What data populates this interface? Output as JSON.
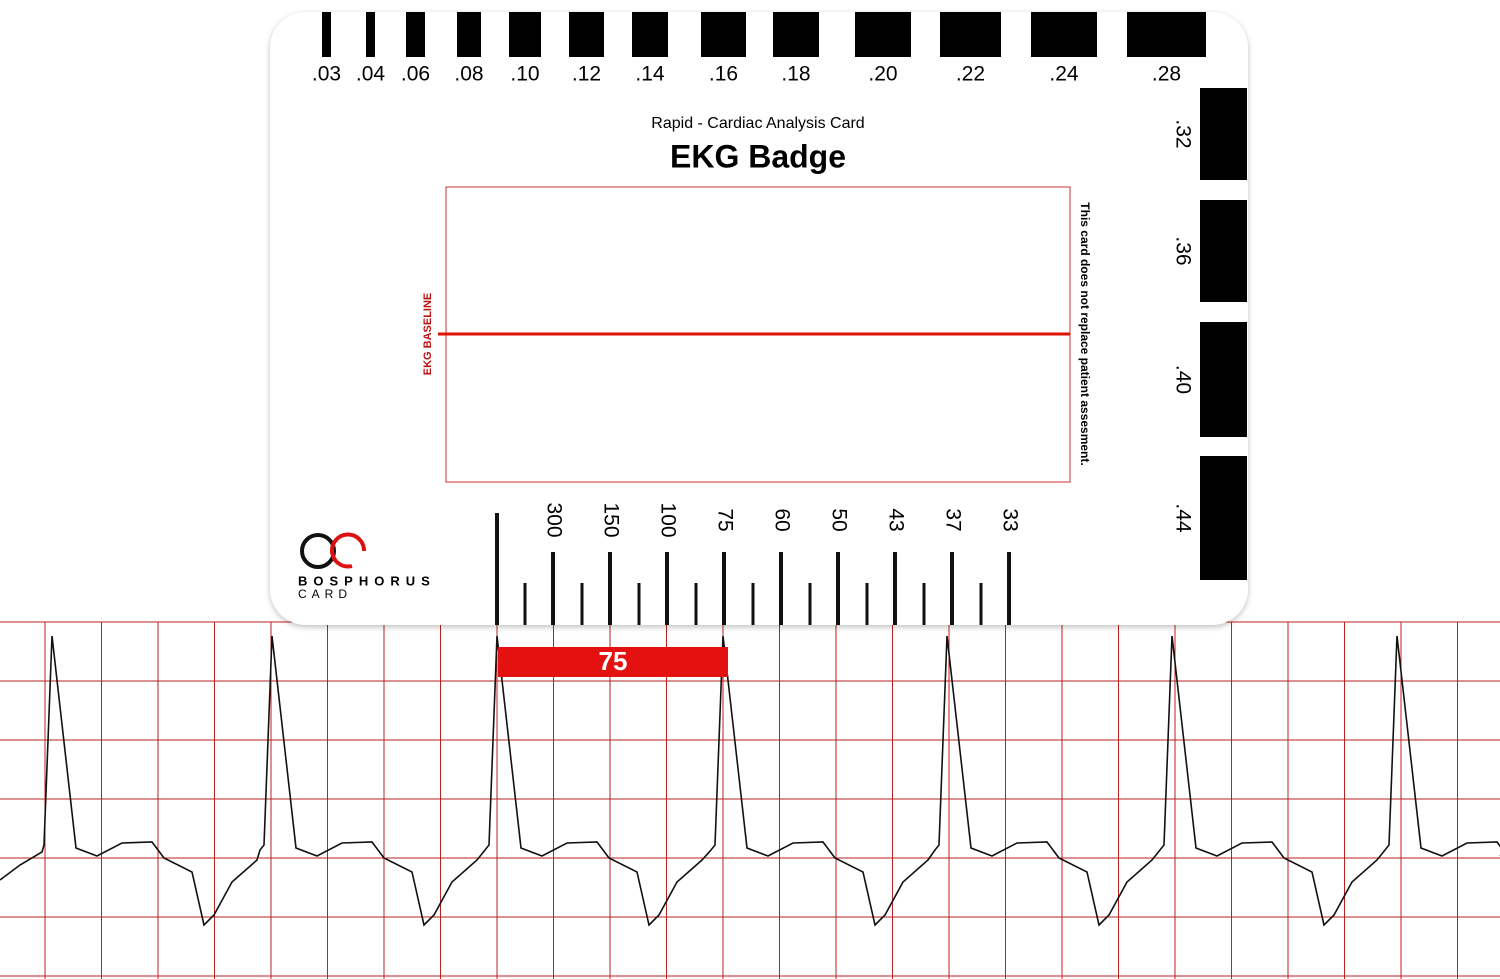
{
  "card": {
    "top_scale": [
      ".03",
      ".04",
      ".06",
      ".08",
      ".10",
      ".12",
      ".14",
      ".16",
      ".18",
      ".20",
      ".22",
      ".24",
      ".28"
    ],
    "right_scale": [
      ".32",
      ".36",
      ".40",
      ".44"
    ],
    "subtitle": "Rapid - Cardiac Analysis Card",
    "title": "EKG Badge",
    "baseline_label": "EKG BASELINE",
    "disclaimer": "This card does not replace patient assesment.",
    "brand": {
      "name": "BOSPHORUS",
      "sub": "CARD"
    },
    "rate_scale": [
      "300",
      "150",
      "100",
      "75",
      "60",
      "50",
      "43",
      "37",
      "33"
    ]
  },
  "strip": {
    "highlight_label": "75"
  }
}
